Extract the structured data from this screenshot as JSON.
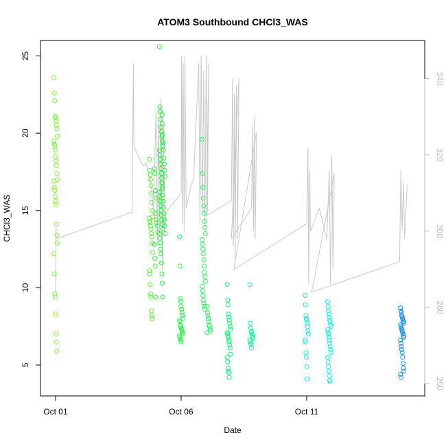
{
  "chart_data": {
    "type": "scatter",
    "title": "ATOM3 Southbound CHCl3_WAS",
    "xlabel": "Date",
    "ylabel": "CHCl3_WAS",
    "x_ticks": [
      "Oct 01",
      "Oct 06",
      "Oct 11"
    ],
    "y_ticks": [
      "5",
      "10",
      "15",
      "20",
      "25"
    ],
    "y2_ticks": [
      "260",
      "280",
      "300",
      "320",
      "340"
    ],
    "xlim": [
      -0.6,
      14.7
    ],
    "ylim": [
      3.0,
      26.0
    ],
    "y2lim": [
      256.8,
      350.0
    ],
    "colors": {
      "axis": "#000000",
      "secondary_axis": "#bdbdbd",
      "line": "#c8c8c8",
      "point_ramp": [
        "#7cf23a",
        "#22f03f",
        "#17f27a",
        "#1ef0b6",
        "#1deaf0",
        "#1fb6f0",
        "#1a8ff0"
      ]
    },
    "series": [
      {
        "style": "points",
        "clusters": [
          {
            "day": 0.0,
            "color": "#7cf23a",
            "values": [
              23.6,
              22.6,
              22.1,
              21.1,
              21.0,
              20.8,
              20.5,
              20.3,
              19.8,
              19.5,
              19.3,
              19.2,
              18.9,
              18.5,
              18.2,
              17.9,
              17.4,
              17.0,
              16.9,
              16.5,
              16.3,
              15.9,
              15.6,
              15.4,
              14.1,
              13.4,
              12.9,
              12.2,
              10.9,
              9.6,
              9.4,
              8.3,
              7.0,
              6.5,
              5.9
            ]
          },
          {
            "day": 3.8,
            "color": "#5ef03a",
            "values": [
              18.3,
              17.6,
              17.3,
              17.0,
              16.6,
              16.1,
              15.5,
              15.0,
              14.6,
              14.5,
              14.3,
              14.2,
              14.0,
              13.8,
              13.5,
              13.3,
              12.9,
              12.3,
              11.1,
              10.9,
              10.2,
              9.6,
              9.4,
              8.5,
              8.2,
              8.0
            ]
          },
          {
            "day": 4.0,
            "color": "#2ff03f",
            "values": [
              17.7,
              17.4,
              16.3,
              15.8,
              14.8,
              14.4,
              14.2,
              14.0,
              13.6,
              12.8,
              11.9,
              11.4,
              9.4
            ]
          },
          {
            "day": 4.2,
            "color": "#22f03f",
            "values": [
              25.6,
              21.7,
              21.4,
              20.9,
              20.4,
              20.1,
              19.8,
              19.5,
              19.2,
              18.9,
              18.6,
              18.3,
              18.0,
              17.7,
              17.4,
              17.1,
              16.8,
              16.5,
              16.2,
              15.9,
              15.6,
              15.3,
              15.0,
              14.7,
              14.4,
              14.1,
              13.8,
              13.5,
              13.2,
              12.9,
              12.5,
              12.2,
              11.6,
              10.9,
              10.3,
              9.4
            ]
          },
          {
            "day": 4.3,
            "color": "#22f03f",
            "values": [
              21.2,
              20.6,
              19.9,
              19.4,
              18.9,
              18.4,
              18.0,
              17.6,
              17.2,
              16.8,
              16.4,
              16.0,
              15.6,
              15.2,
              14.8,
              14.4,
              14.0,
              13.5
            ]
          },
          {
            "day": 5.0,
            "color": "#2ff04e",
            "values": [
              13.3,
              11.4,
              9.3,
              9.1,
              8.8,
              8.6,
              8.4,
              8.2,
              8.0,
              7.9,
              7.8,
              7.6,
              7.5,
              7.4,
              7.3,
              7.2,
              7.1,
              7.0,
              6.9,
              6.8,
              6.7,
              6.6,
              6.5
            ]
          },
          {
            "day": 5.9,
            "color": "#2ef060",
            "values": [
              19.6,
              17.4,
              16.5,
              15.8,
              15.3,
              14.8,
              14.3,
              13.9,
              13.5,
              13.1,
              12.8,
              12.5,
              12.2,
              11.8,
              11.4,
              11.0,
              10.7,
              10.4,
              10.1,
              9.8,
              9.5,
              9.2,
              9.0,
              8.8,
              8.6
            ]
          },
          {
            "day": 6.1,
            "color": "#2ef066",
            "values": [
              8.8,
              8.4,
              8.2,
              8.0,
              7.8,
              7.6,
              7.5,
              7.3,
              7.2,
              7.1
            ]
          },
          {
            "day": 6.9,
            "color": "#17f27a",
            "values": [
              10.2,
              9.2,
              8.9,
              8.3,
              8.1,
              7.9,
              7.7,
              7.5,
              7.3,
              7.1,
              7.0,
              6.9,
              6.8,
              6.6,
              6.5,
              6.3,
              6.1,
              5.7,
              5.5,
              5.2,
              4.8,
              4.6,
              4.5,
              4.2
            ]
          },
          {
            "day": 7.8,
            "color": "#1ef0a0",
            "values": [
              10.2,
              7.7,
              7.4,
              7.2,
              7.1,
              7.0,
              6.9,
              6.8,
              6.7,
              6.6,
              6.5,
              6.4,
              6.3,
              6.1
            ]
          },
          {
            "day": 10.0,
            "color": "#1de8e0",
            "values": [
              9.5,
              8.9,
              8.2,
              8.0,
              7.9,
              7.7,
              7.5,
              7.2,
              7.0,
              6.6,
              6.5,
              5.8,
              5.5,
              4.9,
              4.1
            ]
          },
          {
            "day": 10.9,
            "color": "#1deaf0",
            "values": [
              9.1,
              8.8,
              8.5,
              8.3,
              8.1,
              7.9,
              7.8,
              7.6,
              7.5,
              7.3,
              7.1,
              7.0,
              6.8,
              6.6,
              6.4,
              6.2,
              6.0,
              5.8,
              5.5,
              5.2,
              4.9,
              4.6,
              4.3,
              4.0,
              3.9
            ]
          },
          {
            "day": 13.8,
            "color": "#1a8ff0",
            "values": [
              8.7,
              8.5,
              8.4,
              8.2,
              8.1,
              8.0,
              7.9,
              7.8,
              7.7,
              7.6,
              7.5,
              7.4,
              7.3,
              7.2,
              7.1,
              7.0,
              6.9,
              6.8,
              6.6,
              6.4,
              6.2,
              6.0,
              5.8,
              5.5,
              5.1,
              4.8,
              4.6,
              4.4,
              4.2
            ]
          }
        ]
      },
      {
        "style": "line",
        "axis": "right",
        "points": [
          [
            0.0,
            284
          ],
          [
            0.02,
            301
          ],
          [
            0.03,
            298
          ],
          [
            3.05,
            305
          ],
          [
            3.1,
            344
          ],
          [
            3.12,
            322
          ],
          [
            3.5,
            317
          ],
          [
            3.6,
            318
          ],
          [
            3.7,
            315
          ],
          [
            3.8,
            312
          ],
          [
            3.9,
            305
          ],
          [
            4.0,
            332
          ],
          [
            4.05,
            296
          ],
          [
            4.1,
            330
          ],
          [
            4.15,
            300
          ],
          [
            4.2,
            335
          ],
          [
            4.25,
            290
          ],
          [
            4.3,
            328
          ],
          [
            4.35,
            300
          ],
          [
            4.4,
            305
          ],
          [
            5.0,
            310
          ],
          [
            5.02,
            346
          ],
          [
            5.05,
            302
          ],
          [
            5.08,
            344
          ],
          [
            5.12,
            300
          ],
          [
            5.15,
            346
          ],
          [
            5.2,
            306
          ],
          [
            5.4,
            312
          ],
          [
            5.5,
            314
          ],
          [
            5.7,
            344
          ],
          [
            5.75,
            302
          ],
          [
            5.8,
            346
          ],
          [
            5.85,
            305
          ],
          [
            5.9,
            342
          ],
          [
            5.95,
            302
          ],
          [
            6.0,
            346
          ],
          [
            6.05,
            305
          ],
          [
            6.1,
            344
          ],
          [
            6.0,
            304
          ],
          [
            7.0,
            308
          ],
          [
            7.05,
            340
          ],
          [
            7.08,
            296
          ],
          [
            7.12,
            336
          ],
          [
            7.15,
            292
          ],
          [
            7.2,
            338
          ],
          [
            7.25,
            298
          ],
          [
            7.3,
            340
          ],
          [
            7.0,
            298
          ],
          [
            7.8,
            306
          ],
          [
            7.85,
            328
          ],
          [
            7.88,
            300
          ],
          [
            7.92,
            330
          ],
          [
            7.95,
            298
          ],
          [
            8.0,
            326
          ],
          [
            7.1,
            290
          ],
          [
            7.6,
            292
          ],
          [
            10.0,
            302
          ],
          [
            10.05,
            322
          ],
          [
            10.08,
            286
          ],
          [
            10.12,
            316
          ],
          [
            10.15,
            300
          ],
          [
            10.5,
            306
          ],
          [
            10.8,
            298
          ],
          [
            10.9,
            316
          ],
          [
            10.95,
            286
          ],
          [
            11.0,
            320
          ],
          [
            11.05,
            290
          ],
          [
            11.1,
            315
          ],
          [
            10.2,
            284
          ],
          [
            13.7,
            292
          ],
          [
            13.75,
            316
          ],
          [
            13.8,
            300
          ],
          [
            13.85,
            313
          ],
          [
            13.9,
            298
          ],
          [
            14.0,
            312
          ]
        ]
      }
    ]
  }
}
